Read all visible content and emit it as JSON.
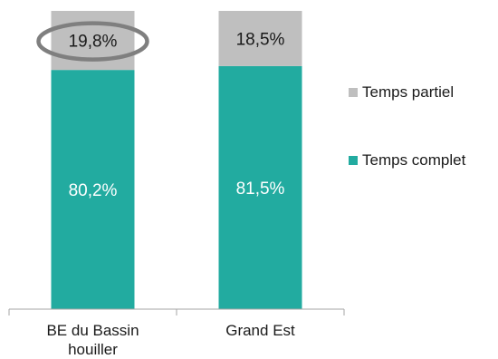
{
  "chart_data": {
    "type": "bar",
    "stacked": true,
    "percent": true,
    "categories": [
      [
        "BE du Bassin",
        "houiller"
      ],
      [
        "Grand Est"
      ]
    ],
    "series": [
      {
        "name": "Temps complet",
        "values": [
          80.2,
          81.5
        ],
        "labels": [
          "80,2%",
          "81,5%"
        ],
        "color": "#22ABA0",
        "label_color": "#ffffff"
      },
      {
        "name": "Temps partiel",
        "values": [
          19.8,
          18.5
        ],
        "labels": [
          "19,8%",
          "18,5%"
        ],
        "color": "#BFBFBF",
        "label_color": "#1a1a1a"
      }
    ],
    "ylim": [
      0,
      100
    ],
    "grid": false,
    "legend": "right",
    "highlight": {
      "category_index": 0,
      "series": "Temps partiel",
      "style": "ellipse",
      "color": "#7F7F7F"
    }
  }
}
